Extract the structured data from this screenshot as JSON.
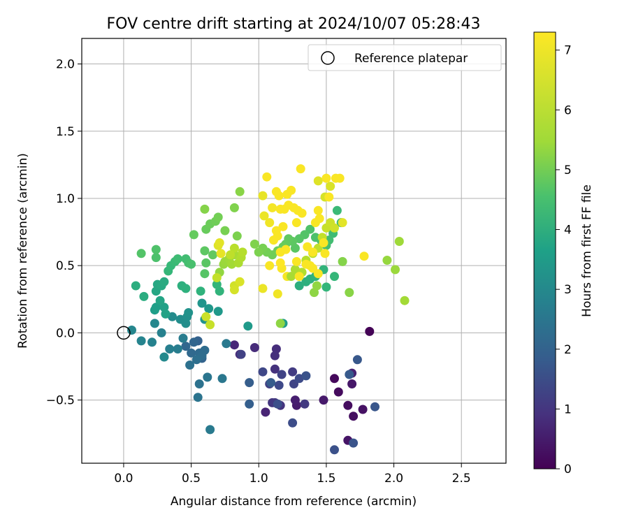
{
  "chart_data": {
    "type": "scatter",
    "title": "FOV centre drift starting at 2024/10/07 05:28:43",
    "xlabel": "Angular distance from reference (arcmin)",
    "ylabel": "Rotation from reference (arcmin)",
    "xlim": [
      -0.31,
      2.83
    ],
    "ylim": [
      -0.97,
      2.19
    ],
    "xticks": [
      "0.0",
      "0.5",
      "1.0",
      "1.5",
      "2.0",
      "2.5"
    ],
    "yticks": [
      "−0.5",
      "0.0",
      "0.5",
      "1.0",
      "1.5",
      "2.0"
    ],
    "grid": true,
    "legend": {
      "position": "top-right",
      "entries": [
        "Reference platepar"
      ]
    },
    "reference_point": {
      "x": 0.0,
      "y": 0.0
    },
    "colorbar": {
      "label": "Hours from first FF file",
      "colormap": "viridis",
      "range": [
        0,
        7.3
      ],
      "ticks": [
        "0",
        "1",
        "2",
        "3",
        "4",
        "5",
        "6",
        "7"
      ]
    },
    "series": [
      {
        "columns": [
          "x",
          "y",
          "hours"
        ],
        "points": [
          [
            1.82,
            0.01,
            0.05
          ],
          [
            1.56,
            -0.34,
            0.15
          ],
          [
            1.59,
            -0.44,
            0.2
          ],
          [
            1.66,
            -0.54,
            0.25
          ],
          [
            1.7,
            -0.62,
            0.3
          ],
          [
            1.77,
            -0.57,
            0.35
          ],
          [
            1.66,
            -0.8,
            0.4
          ],
          [
            1.69,
            -0.38,
            0.45
          ],
          [
            1.48,
            -0.5,
            0.5
          ],
          [
            1.28,
            -0.54,
            0.55
          ],
          [
            1.27,
            -0.5,
            0.6
          ],
          [
            1.69,
            -0.3,
            0.7
          ],
          [
            1.05,
            -0.59,
            0.75
          ],
          [
            0.82,
            -0.09,
            0.8
          ],
          [
            0.86,
            -0.16,
            0.85
          ],
          [
            0.97,
            -0.11,
            0.9
          ],
          [
            1.13,
            -0.12,
            0.95
          ],
          [
            1.12,
            -0.17,
            1.0
          ],
          [
            1.12,
            -0.27,
            1.05
          ],
          [
            1.16,
            -0.54,
            1.1
          ],
          [
            1.1,
            -0.52,
            1.15
          ],
          [
            1.12,
            -0.52,
            1.2
          ],
          [
            1.34,
            -0.53,
            1.25
          ],
          [
            1.25,
            -0.29,
            1.3
          ],
          [
            1.08,
            -0.38,
            1.35
          ],
          [
            0.87,
            -0.16,
            1.4
          ],
          [
            1.17,
            -0.31,
            1.45
          ],
          [
            1.26,
            -0.38,
            1.5
          ],
          [
            1.03,
            -0.29,
            1.55
          ],
          [
            1.15,
            -0.39,
            1.6
          ],
          [
            1.3,
            -0.34,
            1.65
          ],
          [
            1.25,
            -0.67,
            1.7
          ],
          [
            1.14,
            -0.53,
            1.75
          ],
          [
            1.56,
            -0.87,
            1.8
          ],
          [
            1.35,
            -0.32,
            1.85
          ],
          [
            1.7,
            -0.82,
            1.9
          ],
          [
            1.86,
            -0.55,
            1.95
          ],
          [
            1.73,
            -0.2,
            2.0
          ],
          [
            1.67,
            -0.31,
            2.05
          ],
          [
            1.09,
            -0.37,
            2.1
          ],
          [
            0.93,
            -0.37,
            2.15
          ],
          [
            0.93,
            -0.53,
            2.2
          ],
          [
            0.55,
            -0.06,
            2.25
          ],
          [
            0.58,
            -0.19,
            2.3
          ],
          [
            0.52,
            -0.07,
            2.35
          ],
          [
            0.46,
            -0.1,
            2.4
          ],
          [
            0.5,
            -0.15,
            2.45
          ],
          [
            0.56,
            -0.15,
            2.5
          ],
          [
            0.6,
            -0.13,
            2.55
          ],
          [
            0.58,
            -0.17,
            2.6
          ],
          [
            0.54,
            -0.2,
            2.65
          ],
          [
            0.49,
            -0.24,
            2.7
          ],
          [
            0.56,
            -0.38,
            2.75
          ],
          [
            0.55,
            -0.48,
            2.8
          ],
          [
            0.62,
            -0.33,
            2.85
          ],
          [
            0.73,
            -0.34,
            2.9
          ],
          [
            0.76,
            -0.08,
            2.95
          ],
          [
            0.64,
            -0.72,
            3.0
          ],
          [
            0.44,
            -0.04,
            3.05
          ],
          [
            0.4,
            -0.12,
            3.1
          ],
          [
            0.34,
            -0.12,
            3.15
          ],
          [
            0.28,
            0.0,
            3.2
          ],
          [
            0.21,
            -0.07,
            3.25
          ],
          [
            0.13,
            -0.06,
            3.3
          ],
          [
            0.06,
            0.02,
            3.35
          ],
          [
            0.23,
            0.07,
            3.4
          ],
          [
            0.3,
            -0.18,
            3.45
          ],
          [
            0.36,
            0.12,
            3.5
          ],
          [
            0.42,
            0.1,
            3.55
          ],
          [
            0.46,
            0.07,
            3.6
          ],
          [
            0.47,
            0.12,
            3.65
          ],
          [
            0.48,
            0.15,
            3.7
          ],
          [
            0.6,
            0.1,
            3.75
          ],
          [
            0.58,
            0.22,
            3.8
          ],
          [
            0.63,
            0.18,
            3.85
          ],
          [
            0.7,
            0.16,
            3.9
          ],
          [
            0.92,
            0.05,
            3.95
          ],
          [
            1.18,
            0.07,
            4.0
          ],
          [
            0.23,
            0.17,
            4.05
          ],
          [
            0.24,
            0.19,
            4.1
          ],
          [
            0.3,
            0.19,
            4.15
          ],
          [
            0.31,
            0.14,
            4.2
          ],
          [
            0.27,
            0.24,
            4.25
          ],
          [
            0.24,
            0.31,
            4.3
          ],
          [
            0.25,
            0.36,
            4.35
          ],
          [
            0.28,
            0.35,
            4.4
          ],
          [
            0.3,
            0.38,
            4.45
          ],
          [
            0.15,
            0.27,
            4.5
          ],
          [
            0.09,
            0.35,
            4.55
          ],
          [
            0.43,
            0.35,
            4.6
          ],
          [
            0.46,
            0.33,
            4.65
          ],
          [
            0.57,
            0.31,
            4.7
          ],
          [
            0.71,
            0.31,
            4.75
          ],
          [
            0.69,
            0.36,
            4.8
          ],
          [
            0.33,
            0.46,
            4.85
          ],
          [
            0.35,
            0.5,
            4.9
          ],
          [
            0.38,
            0.53,
            4.95
          ],
          [
            0.4,
            0.55,
            5.0
          ],
          [
            0.46,
            0.55,
            5.05
          ],
          [
            0.48,
            0.52,
            5.1
          ],
          [
            0.5,
            0.51,
            5.15
          ],
          [
            0.24,
            0.56,
            5.2
          ],
          [
            0.24,
            0.62,
            5.25
          ],
          [
            0.13,
            0.59,
            5.3
          ],
          [
            0.6,
            0.44,
            5.35
          ],
          [
            0.61,
            0.52,
            5.4
          ],
          [
            0.6,
            0.61,
            5.45
          ],
          [
            0.66,
            0.58,
            5.5
          ],
          [
            0.52,
            0.73,
            5.55
          ],
          [
            0.61,
            0.77,
            5.6
          ],
          [
            0.64,
            0.81,
            5.65
          ],
          [
            0.68,
            0.83,
            5.7
          ],
          [
            0.7,
            0.86,
            5.75
          ],
          [
            0.75,
            0.76,
            5.8
          ],
          [
            0.84,
            0.72,
            5.85
          ],
          [
            0.82,
            0.93,
            5.9
          ],
          [
            0.6,
            0.92,
            5.95
          ],
          [
            0.86,
            1.05,
            6.0
          ],
          [
            1.16,
            0.07,
            6.05
          ],
          [
            0.71,
            0.45,
            6.1
          ],
          [
            0.74,
            0.51,
            6.15
          ],
          [
            0.75,
            0.53,
            6.2
          ],
          [
            0.78,
            0.55,
            6.25
          ],
          [
            0.8,
            0.51,
            6.3
          ],
          [
            0.82,
            0.58,
            6.35
          ],
          [
            0.85,
            0.52,
            6.4
          ],
          [
            0.87,
            0.56,
            6.45
          ],
          [
            0.88,
            0.6,
            6.5
          ],
          [
            0.82,
            0.63,
            6.55
          ],
          [
            0.79,
            0.58,
            6.6
          ],
          [
            0.69,
            0.41,
            6.65
          ],
          [
            0.64,
            0.06,
            6.7
          ],
          [
            0.61,
            0.12,
            6.75
          ],
          [
            0.82,
            0.35,
            6.8
          ],
          [
            0.82,
            0.32,
            6.85
          ],
          [
            0.86,
            0.38,
            6.9
          ],
          [
            0.7,
            0.65,
            6.95
          ],
          [
            0.71,
            0.67,
            7.0
          ],
          [
            0.72,
            0.59,
            7.05
          ],
          [
            1.03,
            0.33,
            7.1
          ],
          [
            1.14,
            0.29,
            7.15
          ],
          [
            1.21,
            0.42,
            7.2
          ],
          [
            1.17,
            0.48,
            7.25
          ],
          [
            1.16,
            0.52,
            7.3
          ]
        ]
      },
      {
        "columns": [
          "x",
          "y",
          "hours"
        ],
        "points": [
          [
            1.3,
            0.35,
            4.55
          ],
          [
            1.35,
            0.38,
            4.6
          ],
          [
            1.38,
            0.4,
            4.65
          ],
          [
            1.42,
            0.42,
            4.7
          ],
          [
            1.48,
            0.47,
            4.75
          ],
          [
            1.5,
            0.34,
            4.8
          ],
          [
            1.56,
            0.42,
            4.85
          ],
          [
            1.61,
            0.82,
            4.9
          ],
          [
            1.58,
            0.91,
            4.95
          ],
          [
            1.55,
            0.74,
            5.0
          ],
          [
            1.52,
            0.69,
            5.05
          ],
          [
            1.5,
            0.65,
            5.1
          ],
          [
            1.46,
            0.69,
            5.15
          ],
          [
            1.42,
            0.71,
            5.2
          ],
          [
            1.38,
            0.77,
            5.25
          ],
          [
            1.34,
            0.73,
            5.3
          ],
          [
            1.3,
            0.7,
            5.35
          ],
          [
            1.27,
            0.63,
            5.4
          ],
          [
            1.25,
            0.68,
            5.45
          ],
          [
            1.22,
            0.7,
            5.5
          ],
          [
            1.2,
            0.66,
            5.55
          ],
          [
            1.18,
            0.64,
            5.6
          ],
          [
            1.14,
            0.61,
            5.65
          ],
          [
            1.1,
            0.58,
            5.7
          ],
          [
            1.06,
            0.6,
            5.75
          ],
          [
            1.03,
            0.63,
            5.8
          ],
          [
            1.0,
            0.6,
            5.85
          ],
          [
            0.97,
            0.66,
            5.9
          ],
          [
            1.62,
            0.53,
            5.95
          ],
          [
            1.67,
            0.3,
            6.0
          ],
          [
            1.41,
            0.3,
            6.05
          ],
          [
            1.43,
            0.35,
            6.1
          ],
          [
            1.95,
            0.54,
            6.15
          ],
          [
            2.01,
            0.47,
            6.2
          ],
          [
            2.04,
            0.68,
            6.25
          ],
          [
            2.08,
            0.24,
            6.3
          ],
          [
            1.24,
            0.42,
            6.35
          ],
          [
            1.27,
            0.47,
            6.4
          ],
          [
            1.32,
            0.45,
            6.45
          ],
          [
            1.35,
            0.54,
            6.5
          ],
          [
            1.4,
            0.59,
            6.55
          ],
          [
            1.44,
            0.63,
            6.6
          ],
          [
            1.47,
            0.71,
            6.65
          ],
          [
            1.5,
            0.78,
            6.7
          ],
          [
            1.53,
            0.82,
            6.75
          ],
          [
            1.56,
            0.78,
            6.8
          ],
          [
            1.49,
            1.01,
            6.85
          ],
          [
            1.53,
            1.09,
            6.9
          ],
          [
            1.44,
            1.13,
            6.95
          ],
          [
            1.62,
            0.82,
            7.0
          ],
          [
            1.03,
            1.02,
            7.05
          ],
          [
            1.04,
            0.87,
            7.1
          ],
          [
            1.08,
            0.82,
            7.15
          ],
          [
            1.1,
            0.93,
            7.2
          ],
          [
            1.13,
            0.76,
            7.25
          ],
          [
            1.16,
            0.92,
            7.25
          ],
          [
            1.06,
            1.16,
            7.25
          ],
          [
            1.13,
            1.05,
            7.25
          ],
          [
            1.15,
            1.02,
            7.25
          ],
          [
            1.21,
            1.03,
            7.25
          ],
          [
            1.24,
            1.06,
            7.25
          ],
          [
            1.31,
            1.22,
            7.25
          ],
          [
            1.19,
            0.92,
            7.25
          ],
          [
            1.22,
            0.95,
            7.25
          ],
          [
            1.26,
            0.93,
            7.25
          ],
          [
            1.29,
            0.91,
            7.25
          ],
          [
            1.32,
            0.89,
            7.25
          ],
          [
            1.28,
            0.82,
            7.25
          ],
          [
            1.18,
            0.79,
            7.25
          ],
          [
            1.14,
            0.72,
            7.25
          ],
          [
            1.11,
            0.69,
            7.25
          ],
          [
            1.08,
            0.5,
            7.25
          ],
          [
            1.28,
            0.53,
            7.25
          ],
          [
            1.3,
            0.42,
            7.25
          ],
          [
            1.35,
            0.51,
            7.25
          ],
          [
            1.38,
            0.5,
            7.25
          ],
          [
            1.4,
            0.48,
            7.25
          ],
          [
            1.44,
            0.44,
            7.25
          ],
          [
            1.49,
            0.59,
            7.25
          ],
          [
            1.48,
            0.67,
            7.25
          ],
          [
            1.52,
            1.01,
            7.25
          ],
          [
            1.5,
            1.15,
            7.25
          ],
          [
            1.57,
            1.15,
            7.25
          ],
          [
            1.6,
            1.15,
            7.25
          ],
          [
            1.42,
            0.82,
            7.25
          ],
          [
            1.45,
            0.85,
            7.25
          ],
          [
            1.36,
            0.64,
            7.25
          ],
          [
            1.4,
            0.6,
            7.25
          ],
          [
            1.78,
            0.57,
            7.25
          ],
          [
            1.44,
            0.91,
            7.25
          ],
          [
            1.16,
            0.6,
            7.25
          ],
          [
            1.2,
            0.62,
            7.25
          ]
        ]
      }
    ]
  }
}
